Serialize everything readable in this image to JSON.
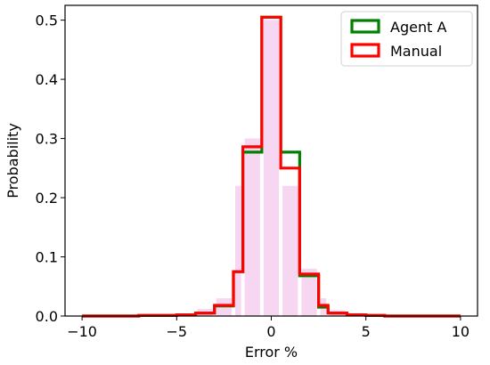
{
  "chart_data": {
    "type": "histogram",
    "title": "",
    "xlabel": "Error %",
    "ylabel": "Probability",
    "xlim": [
      -10.9,
      10.9
    ],
    "ylim": [
      0,
      0.525
    ],
    "xticks": [
      -10,
      -5,
      0,
      5,
      10
    ],
    "xtick_labels": [
      "−10",
      "−5",
      "0",
      "5",
      "10"
    ],
    "yticks": [
      0.0,
      0.1,
      0.2,
      0.3,
      0.4,
      0.5
    ],
    "ytick_labels": [
      "0.0",
      "0.1",
      "0.2",
      "0.3",
      "0.4",
      "0.5"
    ],
    "grid": false,
    "legend_position": "top-right",
    "bin_edges": [
      -10,
      -9,
      -8,
      -7,
      -6,
      -5,
      -4,
      -3,
      -2,
      -1.5,
      -0.5,
      0.5,
      1.5,
      2.5,
      3,
      4,
      5,
      6,
      7,
      8,
      9,
      10
    ],
    "series": [
      {
        "name": "Agent A",
        "color": "#008000",
        "values": [
          0.0,
          0.0,
          0.0,
          0.001,
          0.001,
          0.002,
          0.005,
          0.017,
          0.075,
          0.277,
          0.505,
          0.277,
          0.068,
          0.015,
          0.005,
          0.002,
          0.001,
          0.0,
          0.0,
          0.0,
          0.0
        ]
      },
      {
        "name": "Manual",
        "color": "#ff0000",
        "values": [
          0.0,
          0.0,
          0.0,
          0.001,
          0.001,
          0.002,
          0.005,
          0.018,
          0.075,
          0.286,
          0.505,
          0.25,
          0.071,
          0.018,
          0.005,
          0.002,
          0.001,
          0.0,
          0.0,
          0.0,
          0.0
        ]
      }
    ],
    "background_bars": {
      "color": "#f7d6f2",
      "values": [
        0.0,
        0.0,
        0.001,
        0.001,
        0.002,
        0.004,
        0.012,
        0.03,
        0.22,
        0.3,
        0.5,
        0.22,
        0.08,
        0.03,
        0.01,
        0.005,
        0.002,
        0.001,
        0.0,
        0.0,
        0.0
      ]
    }
  }
}
